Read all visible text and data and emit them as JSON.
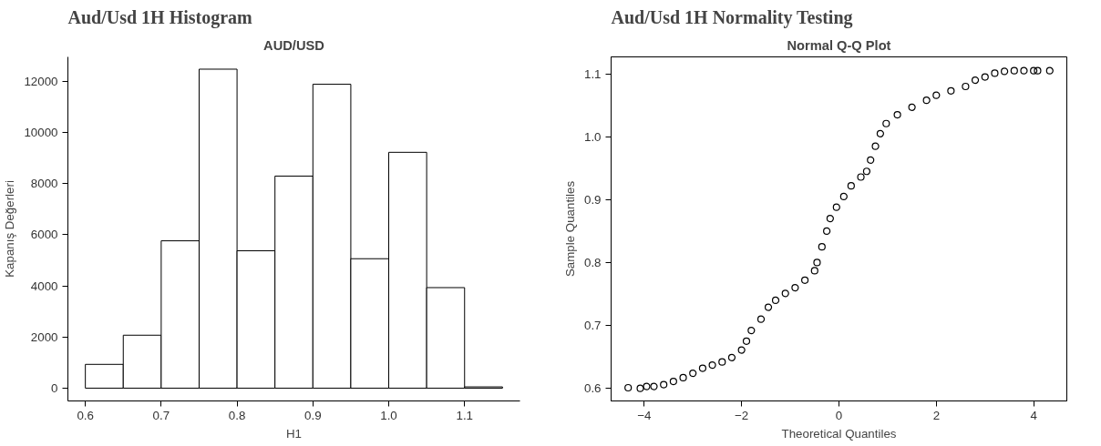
{
  "chart_data": [
    {
      "type": "histogram",
      "title": "Aud/Usd 1H Histogram",
      "subtitle": "AUD/USD",
      "xlabel": "H1",
      "ylabel": "Kapanış Değerleri",
      "bins": [
        0.6,
        0.65,
        0.7,
        0.75,
        0.8,
        0.85,
        0.9,
        0.95,
        1.0,
        1.05,
        1.1,
        1.15
      ],
      "values": [
        930,
        2070,
        5760,
        12470,
        5370,
        8290,
        11880,
        5060,
        9220,
        3930,
        50
      ],
      "color": "#ffffff",
      "xlim": [
        0.577,
        1.173
      ],
      "ylim": [
        -500,
        12950
      ],
      "xticks": [
        0.6,
        0.7,
        0.8,
        0.9,
        {
          "value": 1.0,
          "label": "1.0"
        },
        1.1
      ],
      "yticks": [
        0,
        2000,
        4000,
        6000,
        8000,
        10000,
        12000
      ],
      "grid": false
    },
    {
      "type": "scatter",
      "title": "Aud/Usd 1H Normality Testing",
      "subtitle": "Normal Q-Q Plot",
      "xlabel": "Theoretical Quantiles",
      "ylabel": "Sample Quantiles",
      "marker": "circle",
      "color": "#000000",
      "x": [
        -4.33,
        -4.08,
        -3.95,
        -3.8,
        -3.6,
        -3.4,
        -3.2,
        -3.0,
        -2.8,
        -2.6,
        -2.4,
        -2.2,
        -2.0,
        -1.9,
        -1.8,
        -1.6,
        -1.45,
        -1.3,
        -1.1,
        -0.9,
        -0.7,
        -0.5,
        -0.45,
        -0.35,
        -0.25,
        -0.18,
        -0.05,
        0.1,
        0.25,
        0.45,
        0.57,
        0.65,
        0.75,
        0.85,
        0.97,
        1.2,
        1.5,
        1.8,
        2.0,
        2.3,
        2.6,
        2.8,
        3.0,
        3.2,
        3.4,
        3.6,
        3.8,
        4.0,
        4.08,
        4.33
      ],
      "values": [
        0.601,
        0.6,
        0.603,
        0.603,
        0.606,
        0.611,
        0.617,
        0.624,
        0.632,
        0.637,
        0.642,
        0.649,
        0.661,
        0.675,
        0.692,
        0.71,
        0.729,
        0.74,
        0.751,
        0.76,
        0.772,
        0.787,
        0.8,
        0.825,
        0.85,
        0.87,
        0.888,
        0.905,
        0.922,
        0.936,
        0.945,
        0.963,
        0.985,
        1.005,
        1.021,
        1.035,
        1.047,
        1.058,
        1.066,
        1.073,
        1.08,
        1.09,
        1.095,
        1.101,
        1.104,
        1.105,
        1.105,
        1.105,
        1.105,
        1.105
      ],
      "xlim": [
        -4.68,
        4.68
      ],
      "ylim": [
        0.58,
        1.127
      ],
      "xticks": [
        -4,
        -2,
        0,
        2,
        4
      ],
      "yticks": [
        0.6,
        0.7,
        0.8,
        0.9,
        {
          "value": 1.0,
          "label": "1.0"
        },
        1.1
      ],
      "grid": false
    }
  ]
}
